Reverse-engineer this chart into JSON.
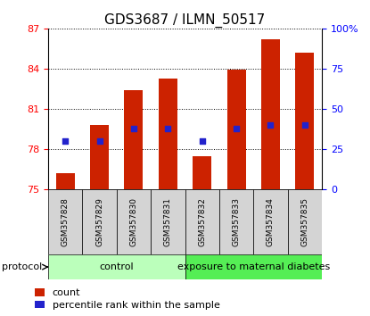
{
  "title": "GDS3687 / ILMN_50517",
  "samples": [
    "GSM357828",
    "GSM357829",
    "GSM357830",
    "GSM357831",
    "GSM357832",
    "GSM357833",
    "GSM357834",
    "GSM357835"
  ],
  "bar_tops": [
    76.2,
    79.8,
    82.4,
    83.3,
    77.5,
    83.9,
    86.2,
    85.2
  ],
  "bar_base": 75.0,
  "blue_dot_right_pct": [
    30,
    30,
    38,
    38,
    30,
    38,
    40,
    40
  ],
  "bar_color": "#cc2200",
  "dot_color": "#2222cc",
  "left_ylim": [
    75,
    87
  ],
  "right_ylim": [
    0,
    100
  ],
  "left_yticks": [
    75,
    78,
    81,
    84,
    87
  ],
  "right_yticks": [
    0,
    25,
    50,
    75,
    100
  ],
  "right_yticklabels": [
    "0",
    "25",
    "50",
    "75",
    "100%"
  ],
  "groups": [
    {
      "label": "control",
      "indices": [
        0,
        1,
        2,
        3
      ],
      "color": "#bbffbb"
    },
    {
      "label": "exposure to maternal diabetes",
      "indices": [
        4,
        5,
        6,
        7
      ],
      "color": "#55ee55"
    }
  ],
  "protocol_label": "protocol",
  "legend_count_label": "count",
  "legend_pct_label": "percentile rank within the sample",
  "title_fontsize": 11,
  "tick_fontsize": 8,
  "bar_width": 0.55,
  "sample_label_fontsize": 6.5,
  "group_label_fontsize": 8,
  "protocol_label_fontsize": 8,
  "legend_fontsize": 8
}
